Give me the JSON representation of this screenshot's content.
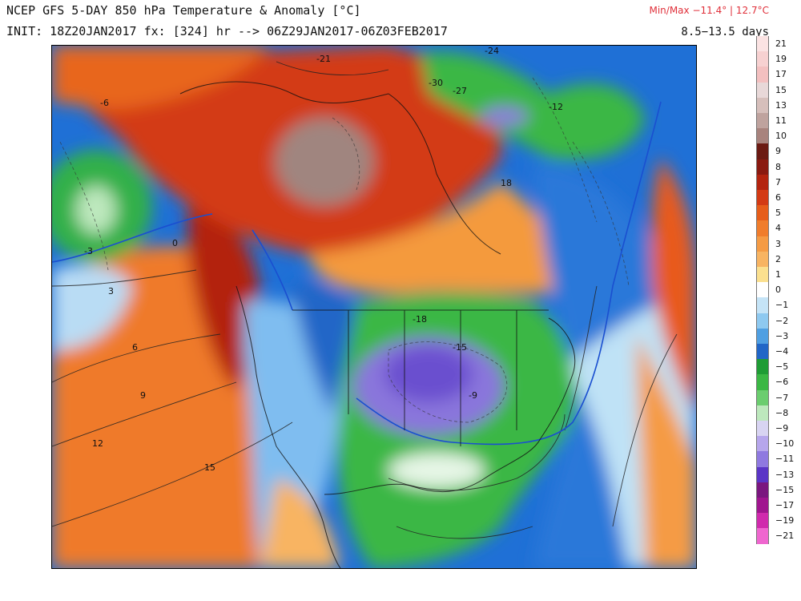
{
  "header": {
    "title": "NCEP GFS 5-DAY 850 hPa Temperature & Anomaly [°C]",
    "init": "INIT: 18Z20JAN2017 fx: [324] hr --> 06Z29JAN2017-06Z03FEB2017",
    "minmax": "Min/Max −11.4° | 12.7°C",
    "range": "8.5−13.5 days"
  },
  "colorbar": {
    "labels": [
      "21",
      "19",
      "17",
      "15",
      "13",
      "11",
      "10",
      "9",
      "8",
      "7",
      "6",
      "5",
      "4",
      "3",
      "2",
      "1",
      "0",
      "−1",
      "−2",
      "−3",
      "−4",
      "−5",
      "−6",
      "−7",
      "−8",
      "−9",
      "−10",
      "−11",
      "−13",
      "−15",
      "−17",
      "−19",
      "−21"
    ],
    "colors": [
      "#fbe3e3",
      "#f7d1d1",
      "#f3c0c0",
      "#e8d8d8",
      "#d6bfbb",
      "#bfa39e",
      "#a8837d",
      "#6b1a12",
      "#8a1a10",
      "#b3240f",
      "#d33a14",
      "#e65d1a",
      "#f07d2c",
      "#f59b44",
      "#f8b462",
      "#fbe08f",
      "#ffffff",
      "#c5e4f7",
      "#8ec9f0",
      "#4f9fe2",
      "#2166c7",
      "#1f9c35",
      "#3bb744",
      "#6bcd6f",
      "#bde8bd",
      "#d8d4f2",
      "#b6a6ec",
      "#8f79e0",
      "#5a35c6",
      "#7a177f",
      "#a0158f",
      "#d02aad",
      "#ef66cf"
    ]
  },
  "contour_labels": {
    "values": [
      "-21",
      "-24",
      "-30",
      "-27",
      "-12",
      "-6",
      "-3",
      "0",
      "3",
      "6",
      "9",
      "12",
      "15",
      "18",
      "-18",
      "-15",
      "-9"
    ]
  },
  "colors": {
    "warm_deep": "#a61b0e",
    "warm": "#e8561a",
    "warm_light": "#f49a3d",
    "neutral": "#ffffff",
    "cold_light": "#7fbdf0",
    "cold": "#1f6fd8",
    "green": "#2fb446",
    "purple": "#8a76dc",
    "brown": "#a0857f",
    "zero_line": "#1a4fd0"
  }
}
